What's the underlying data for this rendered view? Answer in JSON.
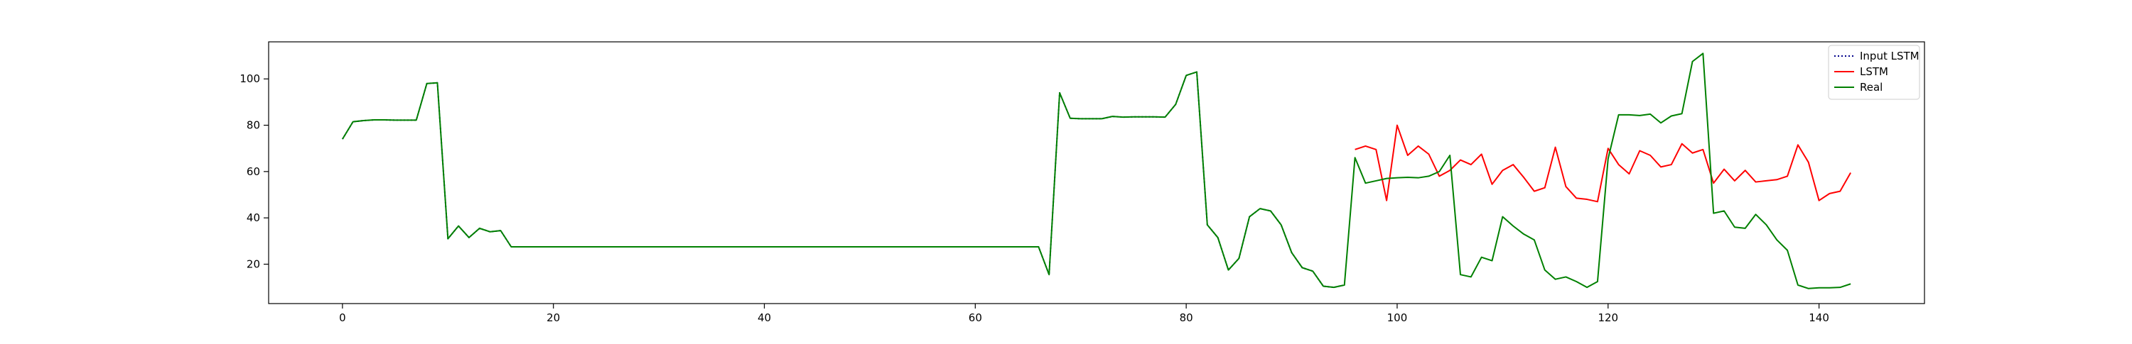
{
  "chart_data": {
    "type": "line",
    "title": "",
    "xlabel": "",
    "ylabel": "",
    "xlim": [
      -7,
      150
    ],
    "ylim": [
      3,
      116
    ],
    "x_ticks": [
      0,
      20,
      40,
      60,
      80,
      100,
      120,
      140
    ],
    "y_ticks": [
      20,
      40,
      60,
      80,
      100
    ],
    "grid": false,
    "legend": {
      "position": "top-right",
      "entries": [
        {
          "label": "Input LSTM",
          "color": "#00008b",
          "style": "dotted"
        },
        {
          "label": "LSTM",
          "color": "#ff0000",
          "style": "solid"
        },
        {
          "label": "Real",
          "color": "#008000",
          "style": "solid"
        }
      ]
    },
    "series": [
      {
        "name": "Input LSTM",
        "color": "#00008b",
        "style": "dotted",
        "x_start": 0,
        "values": [
          74,
          81.5,
          82,
          82.3,
          82.3,
          82.2,
          82.2,
          82.2,
          98,
          98.3,
          31,
          36.5,
          31.5,
          35.5,
          34,
          34.5,
          27.5,
          27.5,
          27.5,
          27.5,
          27.5,
          27.5,
          27.5,
          27.5,
          27.5,
          27.5,
          27.5,
          27.5,
          27.5,
          27.5,
          27.5,
          27.5,
          27.5,
          27.5,
          27.5,
          27.5,
          27.5,
          27.5,
          27.5,
          27.5,
          27.5,
          27.5,
          27.5,
          27.5,
          27.5,
          27.5,
          27.5,
          27.5,
          27.5,
          27.5,
          27.5,
          27.5,
          27.5,
          27.5,
          27.5,
          27.5,
          27.5,
          27.5,
          27.5,
          27.5,
          27.5,
          27.5,
          27.5,
          27.5,
          27.5,
          27.5,
          27.5,
          15.5,
          94,
          83,
          82.8,
          82.8,
          82.8,
          83.8,
          83.5,
          83.6,
          83.6,
          83.6,
          83.5,
          89,
          101.5,
          103,
          37,
          31.5,
          17.5,
          22.5,
          40.5,
          44,
          43,
          37,
          25,
          18.5,
          17,
          10.5,
          10,
          11
        ]
      },
      {
        "name": "LSTM",
        "color": "#ff0000",
        "style": "solid",
        "x_start": 96,
        "values": [
          69.5,
          71,
          69.5,
          47.5,
          80,
          67,
          71,
          67.5,
          58,
          60.5,
          65,
          63,
          67.5,
          54.5,
          60.5,
          63,
          57.5,
          51.5,
          53,
          70.5,
          53.5,
          48.5,
          48,
          47,
          70,
          63,
          59,
          69,
          67,
          62,
          63,
          72,
          68,
          69.5,
          55,
          61,
          56,
          60.5,
          55.5,
          56,
          56.5,
          58,
          71.5,
          64,
          47.5,
          50.5,
          51.5,
          59.5
        ]
      },
      {
        "name": "Real",
        "color": "#008000",
        "style": "solid",
        "x_start": 0,
        "values": [
          74,
          81.5,
          82,
          82.3,
          82.3,
          82.2,
          82.2,
          82.2,
          98,
          98.3,
          31,
          36.5,
          31.5,
          35.5,
          34,
          34.5,
          27.5,
          27.5,
          27.5,
          27.5,
          27.5,
          27.5,
          27.5,
          27.5,
          27.5,
          27.5,
          27.5,
          27.5,
          27.5,
          27.5,
          27.5,
          27.5,
          27.5,
          27.5,
          27.5,
          27.5,
          27.5,
          27.5,
          27.5,
          27.5,
          27.5,
          27.5,
          27.5,
          27.5,
          27.5,
          27.5,
          27.5,
          27.5,
          27.5,
          27.5,
          27.5,
          27.5,
          27.5,
          27.5,
          27.5,
          27.5,
          27.5,
          27.5,
          27.5,
          27.5,
          27.5,
          27.5,
          27.5,
          27.5,
          27.5,
          27.5,
          27.5,
          15.5,
          94,
          83,
          82.8,
          82.8,
          82.8,
          83.8,
          83.5,
          83.6,
          83.6,
          83.6,
          83.5,
          89,
          101.5,
          103,
          37,
          31.5,
          17.5,
          22.5,
          40.5,
          44,
          43,
          37,
          25,
          18.5,
          17,
          10.5,
          10,
          11,
          66,
          55,
          56,
          57,
          57.3,
          57.5,
          57.3,
          58,
          60,
          67,
          15.5,
          14.5,
          23,
          21.5,
          40.5,
          36.5,
          33,
          30.5,
          17.5,
          13.5,
          14.5,
          12.5,
          10,
          12.5,
          65.5,
          84.5,
          84.5,
          84.2,
          84.8,
          81,
          84,
          85,
          107.5,
          111,
          42,
          43,
          36,
          35.5,
          41.5,
          37,
          30.5,
          26,
          11,
          9.5,
          9.8,
          9.8,
          10,
          11.5
        ]
      }
    ]
  }
}
